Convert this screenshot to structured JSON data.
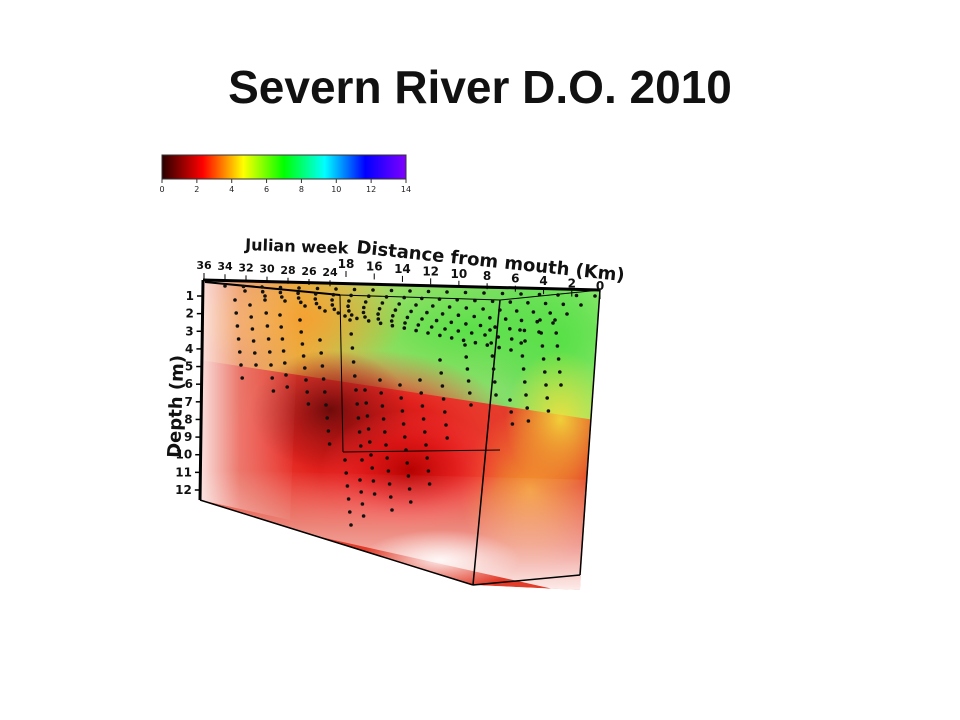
{
  "slide": {
    "title": "Severn River D.O. 2010"
  },
  "colorbar": {
    "min": 0,
    "max": 14,
    "ticks": [
      "0",
      "2",
      "4",
      "6",
      "8",
      "10",
      "12",
      "14"
    ],
    "stops": [
      "#2a0000",
      "#ff0000",
      "#ffff00",
      "#00ff00",
      "#00ffff",
      "#0000ff",
      "#8000ff"
    ]
  },
  "chart_data": {
    "type": "scatter",
    "xlabel": "Distance from mouth (Km)",
    "ylabel": "Depth (m)",
    "zlabel": "Julian week",
    "x_ticks": [
      "18",
      "16",
      "14",
      "12",
      "10",
      "8",
      "6",
      "4",
      "2",
      "0"
    ],
    "y_ticks": [
      "1",
      "2",
      "3",
      "4",
      "5",
      "6",
      "7",
      "8",
      "9",
      "10",
      "11",
      "12"
    ],
    "z_ticks": [
      "36",
      "34",
      "32",
      "30",
      "28",
      "26",
      "24"
    ],
    "xlim": [
      18,
      0
    ],
    "ylim": [
      1,
      12
    ],
    "zlim": [
      36,
      24
    ],
    "colorscale": "dissolved oxygen 0–14"
  }
}
